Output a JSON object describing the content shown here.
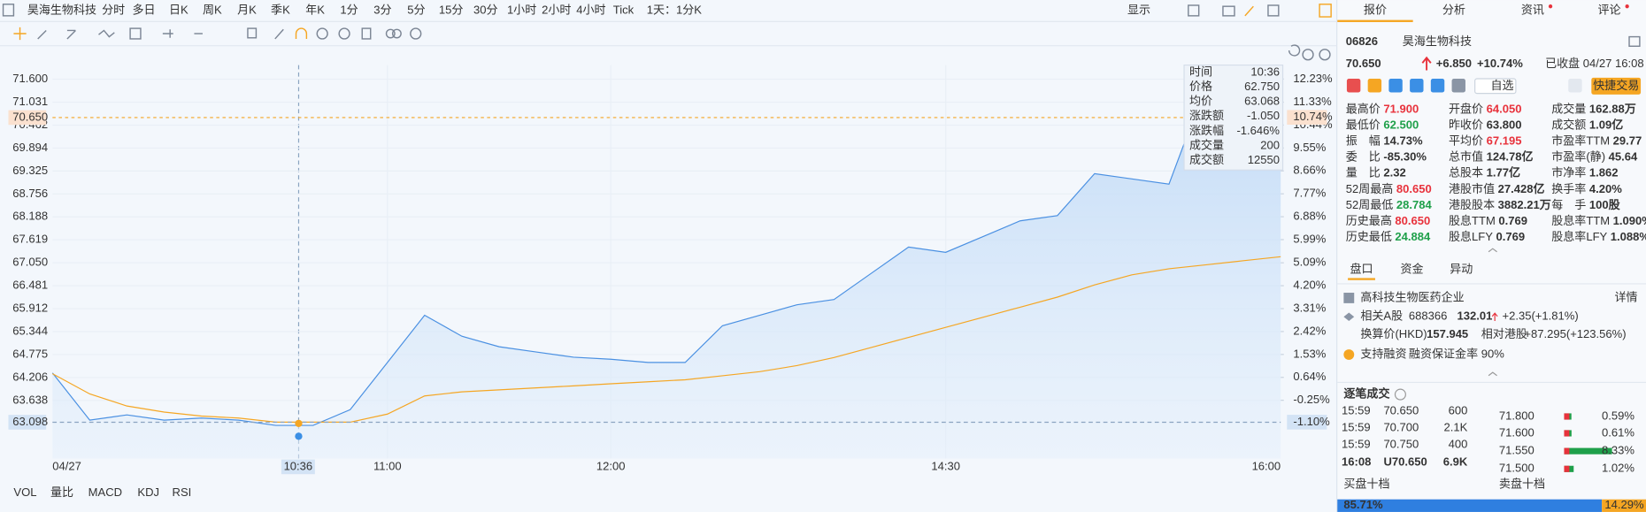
{
  "toolbar": {
    "stock": "昊海生物科技",
    "periods": [
      "分时",
      "多日",
      "日K",
      "周K",
      "月K",
      "季K",
      "年K",
      "1分",
      "3分",
      "5分",
      "15分",
      "30分",
      "1小时",
      "2小时",
      "4小时",
      "Tick",
      "1天：1分K"
    ],
    "display": "显示"
  },
  "chart_data": {
    "type": "line",
    "categories": [
      "04/27",
      null,
      null,
      null,
      null,
      null,
      null,
      null,
      null,
      "11:00",
      null,
      null,
      null,
      null,
      null,
      "12:00",
      null,
      null,
      null,
      null,
      null,
      null,
      null,
      null,
      "14:30",
      null,
      null,
      null,
      null,
      null,
      null,
      null,
      null,
      "16:00"
    ],
    "series": [
      {
        "name": "价格",
        "color": "#4a90e2",
        "values": [
          64.32,
          63.15,
          63.28,
          63.15,
          63.2,
          63.15,
          63.02,
          63.02,
          63.41,
          64.58,
          65.75,
          65.23,
          64.97,
          64.84,
          64.71,
          64.66,
          64.58,
          64.58,
          65.49,
          65.75,
          66.01,
          66.14,
          66.79,
          67.44,
          67.31,
          67.7,
          68.09,
          68.22,
          69.26,
          69.13,
          69.0,
          71.47,
          71.42,
          70.65
        ]
      },
      {
        "name": "均价",
        "color": "#f5a623",
        "values": [
          64.3,
          63.8,
          63.5,
          63.35,
          63.25,
          63.2,
          63.1,
          63.1,
          63.1,
          63.3,
          63.75,
          63.85,
          63.9,
          63.95,
          64.0,
          64.05,
          64.1,
          64.15,
          64.25,
          64.35,
          64.5,
          64.7,
          64.95,
          65.2,
          65.45,
          65.7,
          65.95,
          66.2,
          66.5,
          66.75,
          66.9,
          67.0,
          67.1,
          67.2
        ]
      }
    ],
    "ylim": [
      62.2,
      71.95
    ],
    "yticks": [
      {
        "value": 71.6,
        "label": "71.600"
      },
      71.031,
      70.462,
      69.894,
      69.325,
      68.756,
      68.188,
      67.619,
      {
        "value": 67.05,
        "label": "67.050"
      },
      66.481,
      65.912,
      65.344,
      64.775,
      64.206,
      63.638
    ],
    "y2lim": [
      -2.51,
      12.77
    ],
    "y2ticks": [
      {
        "value": 12.23,
        "label": "12.23%"
      },
      {
        "value": 11.33,
        "label": "11.33%"
      },
      {
        "value": 10.44,
        "label": "10.44%"
      },
      {
        "value": 9.55,
        "label": "9.55%"
      },
      {
        "value": 8.66,
        "label": "8.66%"
      },
      {
        "value": 7.77,
        "label": "7.77%"
      },
      {
        "value": 6.88,
        "label": "6.88%"
      },
      {
        "value": 5.99,
        "label": "5.99%"
      },
      {
        "value": 5.09,
        "label": "5.09%"
      },
      {
        "value": 4.2,
        "label": "4.20%"
      },
      {
        "value": 3.31,
        "label": "3.31%"
      },
      {
        "value": 2.42,
        "label": "2.42%"
      },
      {
        "value": 1.53,
        "label": "1.53%"
      },
      {
        "value": 0.64,
        "label": "0.64%"
      },
      {
        "value": -0.25,
        "label": "-0.25%"
      }
    ],
    "grid": true,
    "last_price": {
      "value": 70.65,
      "label": "70.650"
    },
    "last_pct": {
      "value": 10.74,
      "label": "10.74%"
    },
    "crosshair": {
      "time": "10:36",
      "price": {
        "value": 63.098,
        "label": "63.098"
      },
      "pct": {
        "value": -1.1,
        "label": "-1.10%"
      }
    },
    "tooltip": [
      {
        "name": "时间",
        "label": "10:36"
      },
      {
        "name": "价格",
        "value": 62.75,
        "label": "62.750"
      },
      {
        "name": "均价",
        "value": 63.068,
        "label": "63.068"
      },
      {
        "name": "涨跌额",
        "label": "-1.050"
      },
      {
        "name": "涨跌幅",
        "label": "-1.646%"
      },
      {
        "name": "成交量",
        "label": "200"
      },
      {
        "name": "成交额",
        "label": "12550"
      }
    ]
  },
  "indicators": [
    "VOL",
    "量比",
    "MACD",
    "KDJ",
    "RSI"
  ],
  "quote": {
    "tabs": [
      "报价",
      "分析",
      "资讯",
      "评论"
    ],
    "code": "06826",
    "name": "昊海生物科技",
    "price": "70.650",
    "change": "+6.850",
    "pct": "+10.74%",
    "status": "已收盘 04/27 16:08",
    "watch": "自选",
    "trade": "快捷交易",
    "stats": [
      {
        "label": "最高价",
        "value": "71.900",
        "tone": "up"
      },
      {
        "label": "开盘价",
        "value": "64.050",
        "tone": "up"
      },
      {
        "label": "成交量",
        "value": "162.88万",
        "tone": "flat"
      },
      {
        "label": "最低价",
        "value": "62.500",
        "tone": "down"
      },
      {
        "label": "昨收价",
        "value": "63.800",
        "tone": "flat"
      },
      {
        "label": "成交额",
        "value": "1.09亿",
        "tone": "flat"
      },
      {
        "label": "振　幅",
        "value": "14.73%",
        "tone": "flat"
      },
      {
        "label": "平均价",
        "value": "67.195",
        "tone": "up"
      },
      {
        "label": "市盈率TTM",
        "value": "29.77",
        "tone": "flat"
      },
      {
        "label": "委　比",
        "value": "-85.30%",
        "tone": "flat"
      },
      {
        "label": "总市值",
        "value": "124.78亿",
        "tone": "flat"
      },
      {
        "label": "市盈率(静)",
        "value": "45.64",
        "tone": "flat"
      },
      {
        "label": "量　比",
        "value": "2.32",
        "tone": "flat"
      },
      {
        "label": "总股本",
        "value": "1.77亿",
        "tone": "flat"
      },
      {
        "label": "市净率",
        "value": "1.862",
        "tone": "flat"
      },
      {
        "label": "52周最高",
        "value": "80.650",
        "tone": "up"
      },
      {
        "label": "港股市值",
        "value": "27.428亿",
        "tone": "flat"
      },
      {
        "label": "换手率",
        "value": "4.20%",
        "tone": "flat"
      },
      {
        "label": "52周最低",
        "value": "28.784",
        "tone": "down"
      },
      {
        "label": "港股股本",
        "value": "3882.21万",
        "tone": "flat"
      },
      {
        "label": "每　手",
        "value": "100股",
        "tone": "flat"
      },
      {
        "label": "历史最高",
        "value": "80.650",
        "tone": "up"
      },
      {
        "label": "股息TTM",
        "value": "0.769",
        "tone": "flat"
      },
      {
        "label": "股息率TTM",
        "value": "1.090%",
        "tone": "flat"
      },
      {
        "label": "历史最低",
        "value": "24.884",
        "tone": "down"
      },
      {
        "label": "股息LFY",
        "value": "0.769",
        "tone": "flat"
      },
      {
        "label": "股息率LFY",
        "value": "1.088%",
        "tone": "flat"
      }
    ]
  },
  "panel": {
    "tabs": [
      "盘口",
      "资金",
      "异动"
    ],
    "industry": "高科技生物医药企业",
    "detail": "详情",
    "a_share": {
      "label": "相关A股",
      "code": "688366",
      "price": "132.01",
      "change": "+2.35(+1.81%)"
    },
    "hkd": {
      "label": "换算价(HKD)",
      "value": "157.945",
      "rel_label": "相对港股",
      "rel": "+87.295(+123.56%)"
    },
    "margin": {
      "label": "支持融资",
      "rate": "融资保证金率 90%"
    },
    "trades_title": "逐笔成交",
    "trades": [
      [
        "15:59",
        "70.650",
        "600"
      ],
      [
        "15:59",
        "70.700",
        "2.1K"
      ],
      [
        "15:59",
        "70.750",
        "400"
      ],
      [
        "16:08",
        "U70.650",
        "6.9K"
      ]
    ],
    "ladder": [
      {
        "price": "71.800",
        "pct": {
          "value": 0.59,
          "label": "0.59%"
        }
      },
      {
        "price": "71.600",
        "pct": {
          "value": 0.61,
          "label": "0.61%"
        }
      },
      {
        "price": "71.550",
        "pct": {
          "value": 8.33,
          "label": "8.33%"
        }
      },
      {
        "price": "71.500",
        "pct": {
          "value": 1.02,
          "label": "1.02%"
        }
      }
    ],
    "depth": {
      "buy_label": "买盘十档",
      "sell_label": "卖盘十档",
      "buy": {
        "value": 85.71,
        "label": "85.71%"
      },
      "sell": {
        "value": 14.29,
        "label": "14.29%"
      }
    }
  }
}
